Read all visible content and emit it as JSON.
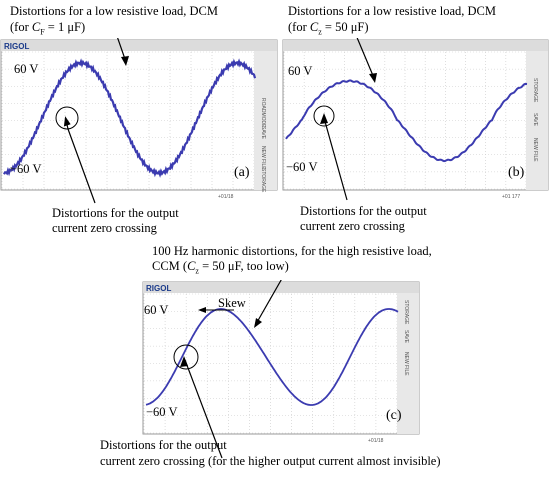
{
  "panels": [
    {
      "id": "a",
      "brand": "RIGOL",
      "caption": "Distortions for a low resistive load, DCM",
      "param_prefix": "(for ",
      "param_sym": "C",
      "param_sub": "F",
      "param_suffix": " = 1 μF)",
      "y_top_label": "60 V",
      "y_bottom_label": "−60 V",
      "letter": "(a)",
      "note_line1": "Distortions for the output",
      "note_line2": "current zero crossing",
      "side_labels": [
        "ROADMODE",
        "SAVE",
        "NEW FILE",
        "STORAGE"
      ],
      "bottom_right": "+01/18"
    },
    {
      "id": "b",
      "brand": "",
      "caption": "Distortions for a low resistive load, DCM",
      "param_prefix": "(for ",
      "param_sym": "C",
      "param_sub": "z",
      "param_suffix": " = 50 μF)",
      "y_top_label": "60 V",
      "y_bottom_label": "−60 V",
      "letter": "(b)",
      "note_line1": "Distortions for the output",
      "note_line2": "current zero crossing",
      "side_labels": [
        "STORAGE",
        "SAVE",
        "NEW FILE"
      ],
      "bottom_right": "+01 177"
    },
    {
      "id": "c",
      "brand": "RIGOL",
      "caption_line1": "100 Hz harmonic distortions, for the high resistive load,",
      "caption_line2_prefix": "CCM (",
      "param_sym": "C",
      "param_sub": "z",
      "caption_line2_suffix": " = 50 μF, too low)",
      "skew_label": "Skew",
      "y_top_label": "60 V",
      "y_bottom_label": "−60 V",
      "letter": "(c)",
      "note_line1": "Distortions for the output",
      "note_line2": "current zero crossing (for the higher output current almost invisible)",
      "side_labels": [
        "STORAGE",
        "SAVE",
        "NEW FILE"
      ],
      "bottom_right": "+01/18"
    }
  ],
  "colors": {
    "trace": "#3b3bb0",
    "grid": "#c9c9c9",
    "scope_frame": "#9a9a9a",
    "toolbar": "#dcdcdc"
  }
}
